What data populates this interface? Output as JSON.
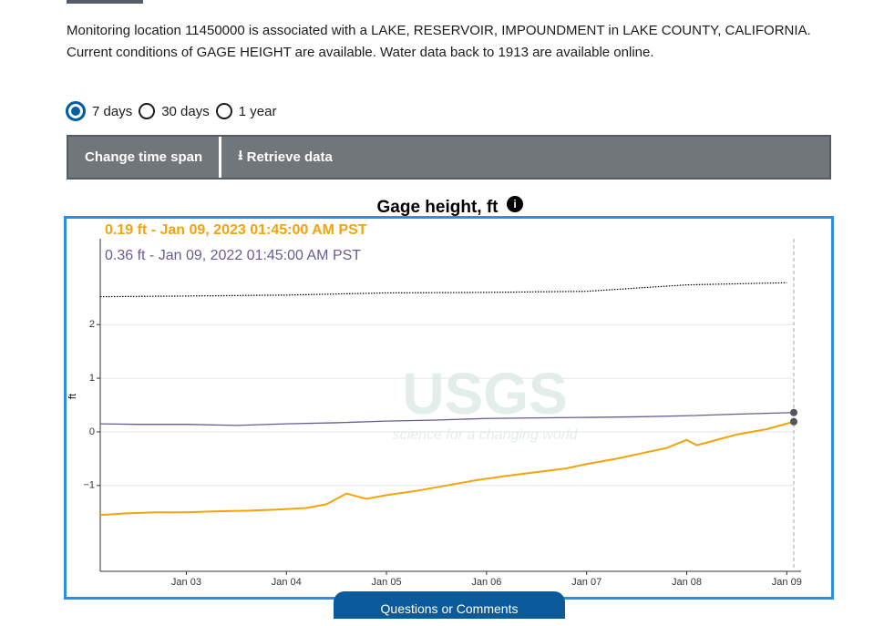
{
  "description": "Monitoring location 11450000 is associated with a LAKE, RESERVOIR, IMPOUNDMENT in LAKE COUNTY, CALIFORNIA. Current conditions of GAGE HEIGHT are available. Water data back to 1913 are available online.",
  "time_spans": [
    "7 days",
    "30 days",
    "1 year"
  ],
  "buttons": [
    "Change time span",
    "Retrieve data"
  ],
  "feedback": "Questions or Comments",
  "chart_data": {
    "type": "line",
    "title": "Gage height, ft",
    "ylabel": "ft",
    "watermark": [
      "USGS",
      "science for a changing world"
    ],
    "readouts": [
      "0.19 ft - Jan 09, 2023 01:45:00 AM PST",
      "0.36 ft - Jan 09, 2022 01:45:00 AM PST"
    ],
    "xlim": [
      2.14,
      9.07
    ],
    "xticks": [
      {
        "value": 3,
        "label": "Jan 03"
      },
      {
        "value": 4,
        "label": "Jan 04"
      },
      {
        "value": 5,
        "label": "Jan 05"
      },
      {
        "value": 6,
        "label": "Jan 06"
      },
      {
        "value": 7,
        "label": "Jan 07"
      },
      {
        "value": 8,
        "label": "Jan 08"
      },
      {
        "value": 9,
        "label": "Jan 09"
      }
    ],
    "ylim": [
      -2.6,
      3.6
    ],
    "yticks": [
      {
        "value": -1,
        "label": "−1"
      },
      0,
      1,
      2
    ],
    "grid": true,
    "series": [
      {
        "color": "#f5a30c",
        "x": [
          2.14,
          2.4,
          2.7,
          3.0,
          3.3,
          3.6,
          3.9,
          4.2,
          4.4,
          4.6,
          4.8,
          5.0,
          5.3,
          5.6,
          5.9,
          6.2,
          6.5,
          6.8,
          7.0,
          7.3,
          7.6,
          7.8,
          8.0,
          8.1,
          8.3,
          8.5,
          8.8,
          9.07
        ],
        "values": [
          -1.55,
          -1.52,
          -1.5,
          -1.5,
          -1.48,
          -1.47,
          -1.45,
          -1.42,
          -1.35,
          -1.15,
          -1.25,
          -1.18,
          -1.1,
          -1.0,
          -0.9,
          -0.82,
          -0.75,
          -0.68,
          -0.6,
          -0.5,
          -0.38,
          -0.3,
          -0.15,
          -0.25,
          -0.15,
          -0.05,
          0.05,
          0.19
        ]
      },
      {
        "color": "#6b5b95",
        "x": [
          2.14,
          2.5,
          3.0,
          3.5,
          4.0,
          4.5,
          5.0,
          5.5,
          6.0,
          6.5,
          7.0,
          7.5,
          8.0,
          8.5,
          9.07
        ],
        "values": [
          0.15,
          0.14,
          0.14,
          0.12,
          0.15,
          0.17,
          0.2,
          0.22,
          0.25,
          0.26,
          0.27,
          0.28,
          0.3,
          0.33,
          0.36
        ]
      },
      {
        "color": "#000000",
        "x": [
          2.14,
          2.9,
          4.0,
          5.0,
          6.0,
          7.0,
          8.0,
          9.0
        ],
        "values": [
          2.52,
          2.53,
          2.55,
          2.59,
          2.6,
          2.62,
          2.74,
          2.78
        ]
      }
    ]
  }
}
